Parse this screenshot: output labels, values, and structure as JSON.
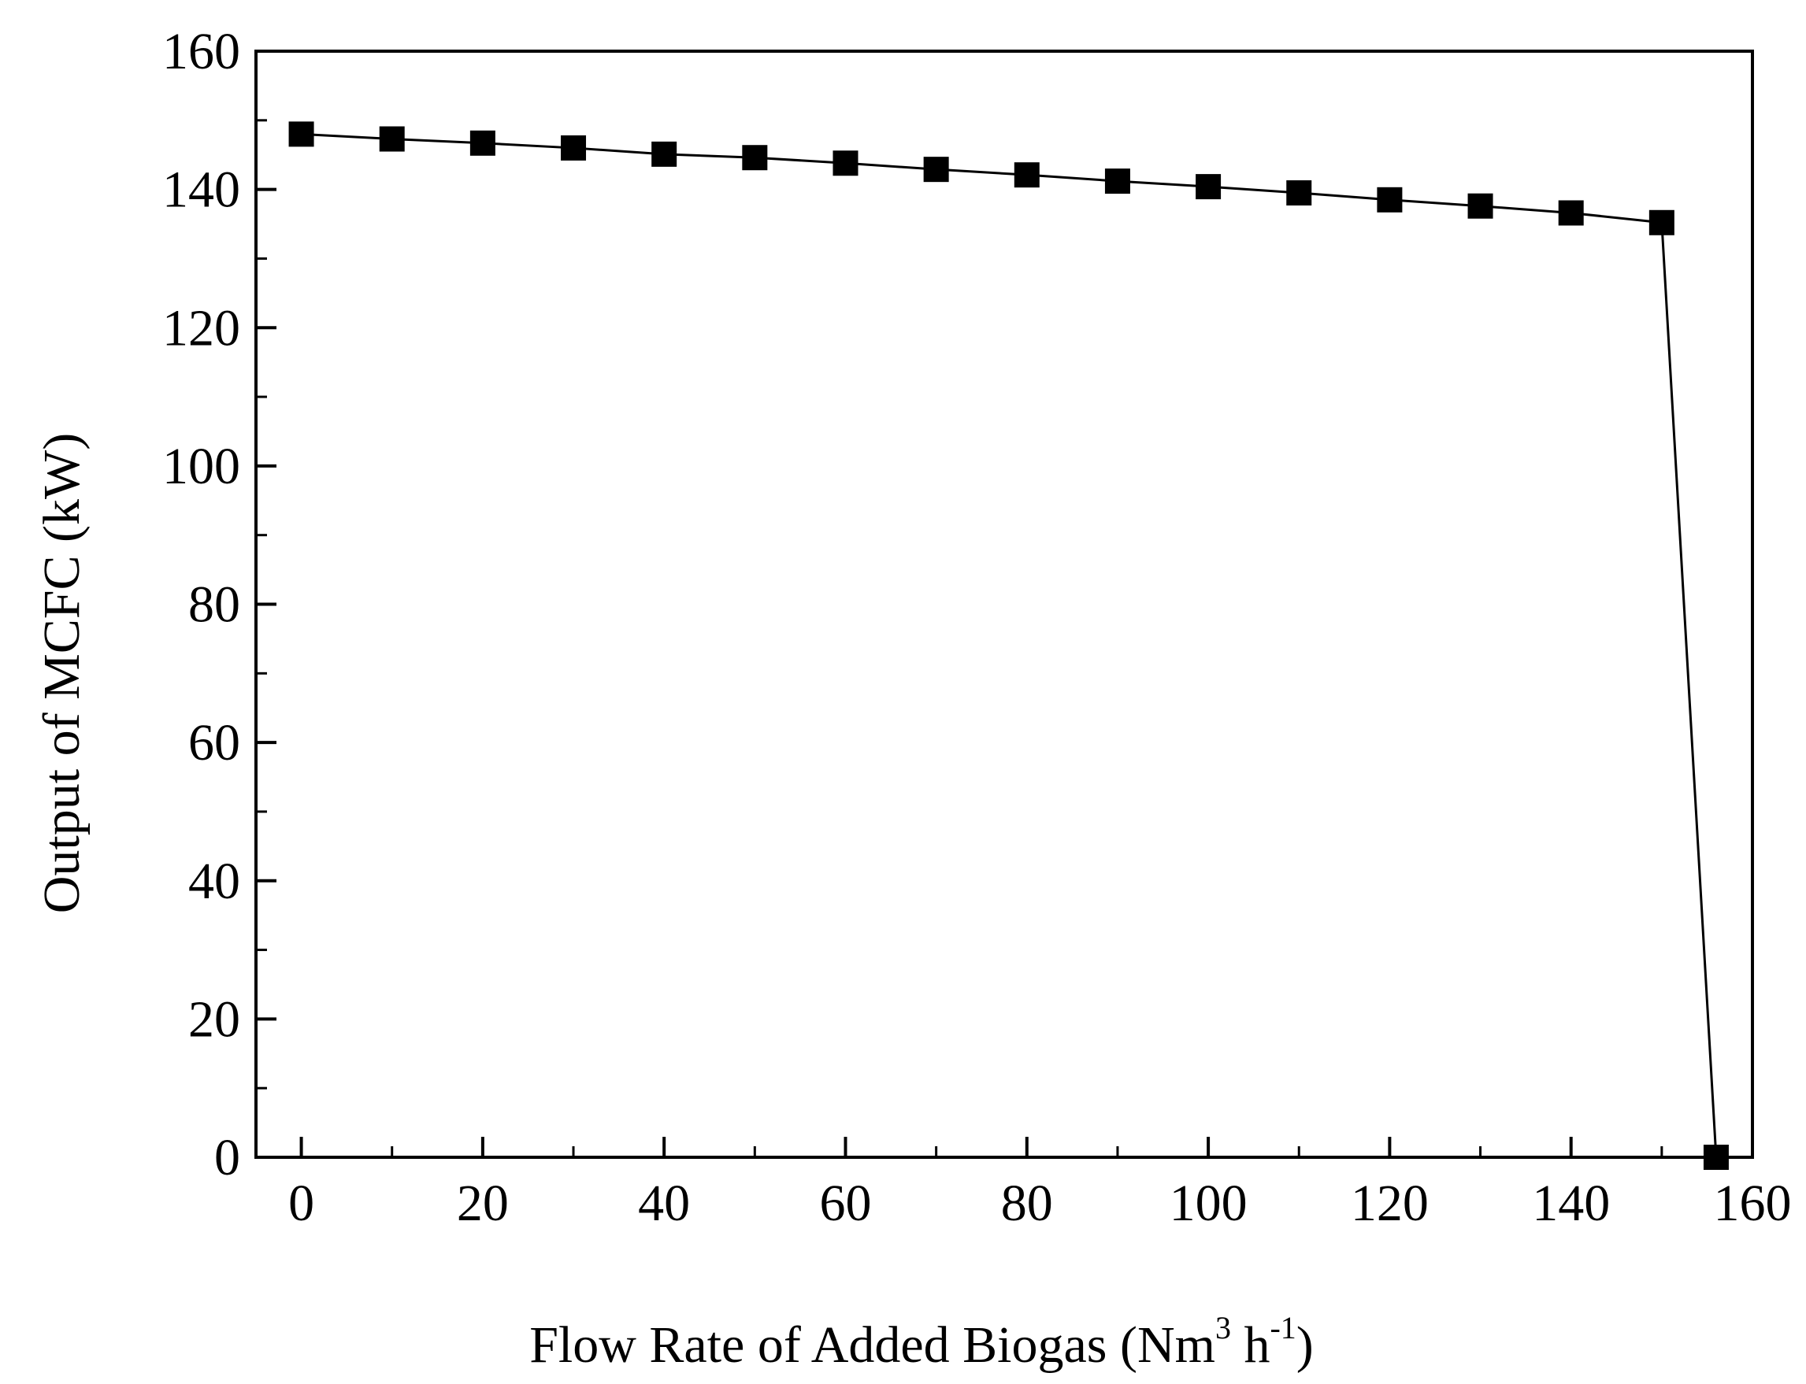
{
  "chart_data": {
    "type": "line",
    "title": "",
    "xlabel": {
      "prefix": "Flow Rate of Added Biogas (Nm",
      "sup1": "3",
      "middle": " h",
      "sup2": "-1",
      "suffix": ")"
    },
    "ylabel": "Output of MCFC (kW)",
    "xlim": [
      -5,
      160
    ],
    "ylim": [
      0,
      160
    ],
    "x_ticks": [
      0,
      20,
      40,
      60,
      80,
      100,
      120,
      140,
      160
    ],
    "y_ticks": [
      0,
      20,
      40,
      60,
      80,
      100,
      120,
      140,
      160
    ],
    "x_tick_labels": [
      "0",
      "20",
      "40",
      "60",
      "80",
      "100",
      "120",
      "140",
      "160"
    ],
    "y_tick_labels": [
      "0",
      "20",
      "40",
      "60",
      "80",
      "100",
      "120",
      "140",
      "160"
    ],
    "grid": false,
    "legend": "none",
    "series": [
      {
        "marker": "square",
        "color": "#000000",
        "x": [
          0,
          10,
          20,
          30,
          40,
          50,
          60,
          70,
          80,
          90,
          100,
          110,
          120,
          130,
          140,
          150,
          156
        ],
        "y": [
          148,
          147.3,
          146.7,
          146,
          145.1,
          144.6,
          143.8,
          142.9,
          142.1,
          141.2,
          140.4,
          139.5,
          138.5,
          137.6,
          136.6,
          135.2,
          0
        ]
      }
    ]
  }
}
